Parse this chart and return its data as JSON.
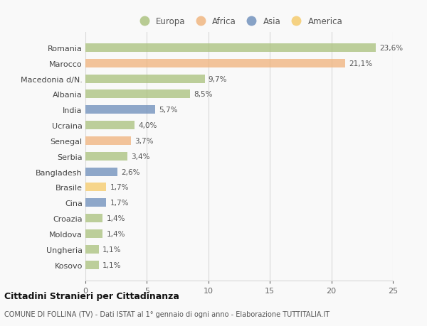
{
  "categories": [
    "Romania",
    "Marocco",
    "Macedonia d/N.",
    "Albania",
    "India",
    "Ucraina",
    "Senegal",
    "Serbia",
    "Bangladesh",
    "Brasile",
    "Cina",
    "Croazia",
    "Moldova",
    "Ungheria",
    "Kosovo"
  ],
  "values": [
    23.6,
    21.1,
    9.7,
    8.5,
    5.7,
    4.0,
    3.7,
    3.4,
    2.6,
    1.7,
    1.7,
    1.4,
    1.4,
    1.1,
    1.1
  ],
  "labels": [
    "23,6%",
    "21,1%",
    "9,7%",
    "8,5%",
    "5,7%",
    "4,0%",
    "3,7%",
    "3,4%",
    "2,6%",
    "1,7%",
    "1,7%",
    "1,4%",
    "1,4%",
    "1,1%",
    "1,1%"
  ],
  "colors": [
    "#a8c07a",
    "#f0b27a",
    "#a8c07a",
    "#a8c07a",
    "#6b8cba",
    "#a8c07a",
    "#f0b27a",
    "#a8c07a",
    "#6b8cba",
    "#f5c966",
    "#6b8cba",
    "#a8c07a",
    "#a8c07a",
    "#a8c07a",
    "#a8c07a"
  ],
  "legend": [
    {
      "label": "Europa",
      "color": "#a8c07a"
    },
    {
      "label": "Africa",
      "color": "#f0b27a"
    },
    {
      "label": "Asia",
      "color": "#6b8cba"
    },
    {
      "label": "America",
      "color": "#f5c966"
    }
  ],
  "xlim": [
    0,
    25
  ],
  "xticks": [
    0,
    5,
    10,
    15,
    20,
    25
  ],
  "title": "Cittadini Stranieri per Cittadinanza",
  "subtitle": "COMUNE DI FOLLINA (TV) - Dati ISTAT al 1° gennaio di ogni anno - Elaborazione TUTTITALIA.IT",
  "background_color": "#f9f9f9",
  "grid_color": "#d8d8d8",
  "bar_height": 0.55
}
